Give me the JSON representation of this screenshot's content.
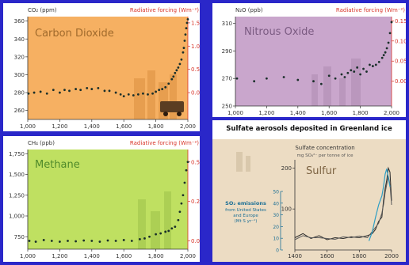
{
  "panels": {
    "co2": {
      "unit_label": "CO₂ (ppm)",
      "rf_label": "Radiative forcing (Wm⁻²)",
      "title": "Carbon Dioxide"
    },
    "n2o": {
      "unit_label": "N₂O (ppb)",
      "rf_label": "Radiative forcing (Wm⁻²)",
      "title": "Nitrous Oxide"
    },
    "ch4": {
      "unit_label": "CH₄ (ppb)",
      "rf_label": "Radiative forcing (Wm⁻²)",
      "title": "Methane"
    },
    "sulfur": {
      "header": "Sulfate aerosols deposited in Greenland ice",
      "conc_label": "Sulfate concentration",
      "conc_unit": "mg SO₄²⁻ per tonne of ice",
      "title": "Sulfur",
      "so2_title": "SO₂ emissions",
      "so2_sub1": "from United States",
      "so2_sub2": "and Europe",
      "so2_sub3": "(Mt S yr⁻¹)"
    }
  },
  "colors": {
    "co2_bg": "#f6b062",
    "n2o_bg": "#c9a6cc",
    "ch4_bg": "#bfe061",
    "sulfur_bg": "#ecdcc3",
    "series": "#1a2f2a",
    "rf_axis": "#d8352a",
    "background": "#2a27c9"
  },
  "chart_data": [
    {
      "type": "scatter",
      "title": "Carbon Dioxide",
      "ylabel": "CO₂ (ppm)",
      "y2label": "Radiative forcing (Wm⁻²)",
      "xlim": [
        1000,
        2000
      ],
      "ylim": [
        250,
        365
      ],
      "xticks": [
        1000,
        1200,
        1400,
        1600,
        1800,
        2000
      ],
      "yticks": [
        260,
        280,
        300,
        320,
        340,
        360
      ],
      "y2ticks": [
        0.0,
        0.5,
        1.0,
        1.5
      ],
      "x": [
        1005,
        1040,
        1080,
        1120,
        1160,
        1200,
        1230,
        1260,
        1300,
        1330,
        1370,
        1400,
        1440,
        1480,
        1510,
        1550,
        1580,
        1600,
        1630,
        1660,
        1690,
        1720,
        1750,
        1780,
        1800,
        1820,
        1840,
        1860,
        1880,
        1900,
        1910,
        1920,
        1930,
        1940,
        1950,
        1960,
        1970,
        1975,
        1980,
        1985,
        1990,
        1995,
        2000
      ],
      "y": [
        279,
        280,
        281,
        279,
        283,
        280,
        283,
        282,
        284,
        283,
        285,
        284,
        285,
        282,
        282,
        280,
        278,
        276,
        278,
        277,
        278,
        279,
        278,
        279,
        281,
        283,
        284,
        286,
        290,
        295,
        298,
        302,
        305,
        308,
        312,
        317,
        325,
        330,
        338,
        345,
        352,
        358,
        362
      ]
    },
    {
      "type": "scatter",
      "title": "Nitrous Oxide",
      "ylabel": "N₂O (ppb)",
      "y2label": "Radiative forcing (Wm⁻²)",
      "xlim": [
        1000,
        2000
      ],
      "ylim": [
        250,
        315
      ],
      "xticks": [
        1000,
        1200,
        1400,
        1600,
        1800,
        2000
      ],
      "yticks": [
        250,
        270,
        290,
        310
      ],
      "y2ticks": [
        0.0,
        0.05,
        0.1,
        0.15
      ],
      "x": [
        1010,
        1120,
        1200,
        1310,
        1400,
        1500,
        1550,
        1600,
        1640,
        1680,
        1700,
        1720,
        1740,
        1760,
        1780,
        1800,
        1820,
        1840,
        1860,
        1880,
        1900,
        1920,
        1940,
        1950,
        1960,
        1970,
        1980,
        1990,
        2000
      ],
      "y": [
        270,
        268,
        270,
        271,
        269,
        268,
        266,
        272,
        270,
        273,
        271,
        274,
        276,
        275,
        278,
        273,
        277,
        275,
        280,
        279,
        280,
        282,
        285,
        287,
        289,
        292,
        296,
        303,
        311
      ]
    },
    {
      "type": "scatter",
      "title": "Methane",
      "ylabel": "CH₄ (ppb)",
      "y2label": "Radiative forcing (Wm⁻²)",
      "xlim": [
        1000,
        2000
      ],
      "ylim": [
        600,
        1800
      ],
      "xticks": [
        1000,
        1200,
        1400,
        1600,
        1800,
        2000
      ],
      "yticks": [
        750,
        1000,
        1250,
        1500,
        1750
      ],
      "y2ticks": [
        0.0,
        0.25,
        0.5
      ],
      "x": [
        1010,
        1050,
        1100,
        1150,
        1200,
        1250,
        1300,
        1350,
        1400,
        1450,
        1500,
        1550,
        1600,
        1650,
        1700,
        1730,
        1760,
        1800,
        1830,
        1860,
        1880,
        1900,
        1920,
        1940,
        1950,
        1960,
        1970,
        1980,
        1990,
        2000
      ],
      "y": [
        700,
        690,
        710,
        700,
        690,
        700,
        695,
        705,
        700,
        690,
        705,
        700,
        710,
        700,
        720,
        730,
        750,
        780,
        790,
        810,
        820,
        850,
        870,
        950,
        1050,
        1150,
        1250,
        1400,
        1550,
        1650
      ]
    },
    {
      "type": "line",
      "title": "Sulfur",
      "ylabel": "Sulfate concentration",
      "y2label": "SO₂ emissions",
      "xlim": [
        1400,
        2000
      ],
      "ylim": [
        0,
        220
      ],
      "xticks": [
        1400,
        1600,
        1800,
        2000
      ],
      "yticks": [
        100,
        200
      ],
      "y2ticks": [
        0,
        10,
        20,
        30,
        40,
        50
      ],
      "series": [
        {
          "x": [
            1400,
            1450,
            1500,
            1550,
            1600,
            1650,
            1700,
            1750,
            1800,
            1850,
            1880,
            1900,
            1920,
            1940,
            1950,
            1960,
            1970,
            1980,
            1990,
            2000
          ],
          "y": [
            30,
            40,
            28,
            35,
            25,
            30,
            28,
            32,
            30,
            35,
            40,
            50,
            70,
            80,
            120,
            150,
            170,
            200,
            190,
            120
          ]
        },
        {
          "x": [
            1400,
            1450,
            1500,
            1550,
            1600,
            1650,
            1700,
            1750,
            1800,
            1850,
            1880,
            1900,
            1920,
            1940,
            1950,
            1960,
            1970,
            1980,
            1990,
            2000
          ],
          "y": [
            25,
            35,
            30,
            30,
            28,
            26,
            32,
            30,
            34,
            30,
            45,
            55,
            65,
            90,
            110,
            140,
            160,
            180,
            160,
            110
          ]
        },
        {
          "x": [
            1860,
            1880,
            1900,
            1920,
            1940,
            1950,
            1960,
            1970,
            1980,
            1990
          ],
          "y": [
            5,
            10,
            18,
            25,
            30,
            35,
            42,
            45,
            40,
            35
          ]
        }
      ]
    }
  ]
}
